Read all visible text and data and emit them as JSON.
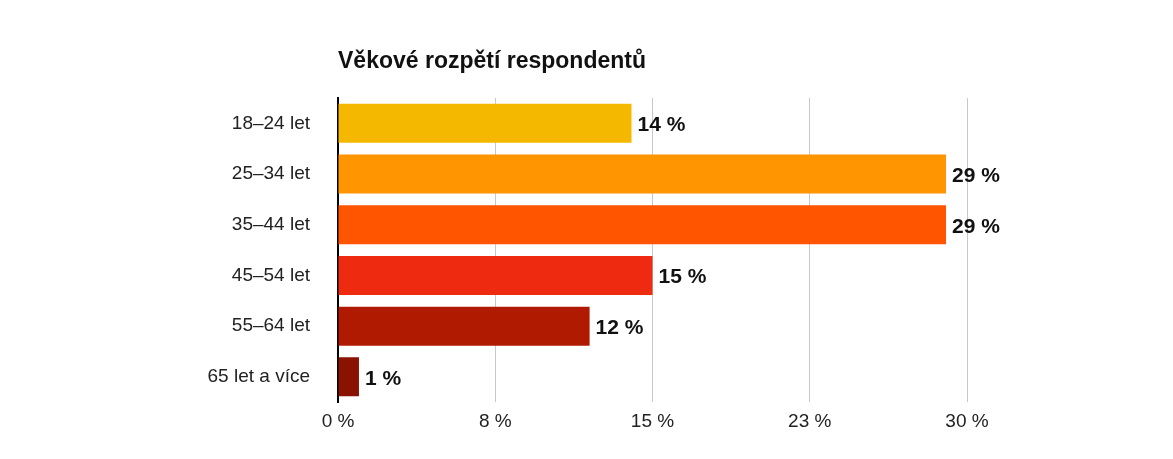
{
  "chart_data": {
    "type": "bar",
    "orientation": "horizontal",
    "title": "Věkové rozpětí respondentů",
    "categories": [
      "18–24 let",
      "25–34 let",
      "35–44 let",
      "45–54 let",
      "55–64 let",
      "65 let a více"
    ],
    "values": [
      14,
      29,
      29,
      15,
      12,
      1
    ],
    "colors": [
      "#f5b800",
      "#ff9500",
      "#ff5500",
      "#ee2a10",
      "#b01a00",
      "#8a1200"
    ],
    "value_labels": [
      "14 %",
      "29 %",
      "29 %",
      "15 %",
      "12 %",
      "1 %"
    ],
    "xlim": [
      0,
      30
    ],
    "xticks": [
      {
        "value": 0,
        "label": "0 %"
      },
      {
        "value": 7.5,
        "label": "8 %"
      },
      {
        "value": 15,
        "label": "15 %"
      },
      {
        "value": 22.5,
        "label": "23 %"
      },
      {
        "value": 30,
        "label": "30 %"
      }
    ],
    "grid": "x",
    "legend": false
  }
}
